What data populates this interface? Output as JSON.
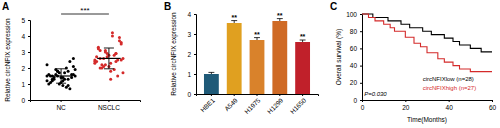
{
  "chart_data": [
    {
      "panel": "A",
      "type": "scatter",
      "categories": [
        "NC",
        "NSCLC"
      ],
      "values": [
        [
          1.5,
          1.2,
          1.8,
          1.4,
          0.9,
          2.1,
          1.6,
          1.3,
          1.0,
          1.7,
          2.4,
          1.5,
          1.1,
          1.9,
          1.4,
          0.8,
          1.6,
          2.2,
          1.3,
          1.5,
          1.2,
          1.8,
          2.6,
          1.0,
          1.4,
          1.7,
          1.3,
          0.7,
          1.9,
          1.5,
          1.6,
          1.1,
          2.0,
          1.4,
          1.2,
          1.5,
          1.8,
          0.9,
          1.3,
          1.6
        ],
        [
          2.5,
          3.1,
          2.2,
          1.8,
          2.9,
          3.6,
          2.4,
          2.0,
          2.7,
          4.2,
          1.5,
          2.6,
          3.3,
          2.1,
          2.8,
          1.9,
          3.9,
          2.3,
          2.6,
          3.0,
          1.3,
          2.4,
          3.5,
          2.7,
          2.2,
          2.9,
          4.0,
          2.5,
          1.7,
          3.2,
          2.6,
          2.1,
          2.8,
          3.7,
          2.4,
          2.0,
          3.1,
          2.3,
          2.9,
          2.5
        ]
      ],
      "means": [
        1.5,
        2.6
      ],
      "errors": [
        0.45,
        0.65
      ],
      "colors": [
        "#000000",
        "#d42a2a"
      ],
      "marker": "circle",
      "ylabel": "Relative circNFIX expression",
      "ylim": [
        0,
        5
      ],
      "yticks": [
        0,
        1,
        2,
        3,
        4,
        5
      ],
      "annotation": "***"
    },
    {
      "panel": "B",
      "type": "bar",
      "categories": [
        "HBE1",
        "A549",
        "H1975",
        "H1299",
        "H1650"
      ],
      "values": [
        1.0,
        3.55,
        2.7,
        3.65,
        2.6
      ],
      "errors": [
        0.08,
        0.12,
        0.12,
        0.12,
        0.1
      ],
      "colors": [
        "#1f5a78",
        "#e0a020",
        "#d9822b",
        "#cf6a25",
        "#c0202a"
      ],
      "ylabel": "Relative circNFIX expression",
      "ylim": [
        0,
        4
      ],
      "yticks": [
        0,
        1,
        2,
        3,
        4
      ],
      "annotations": [
        null,
        "**",
        "**",
        "**",
        "**"
      ]
    },
    {
      "panel": "C",
      "type": "line",
      "xlabel": "Time(Months)",
      "ylabel": "Overall survival (%)",
      "xlim": [
        0,
        60
      ],
      "xticks": [
        0,
        20,
        40,
        60
      ],
      "ylim": [
        0,
        100
      ],
      "yticks": [
        0,
        20,
        40,
        60,
        80,
        100
      ],
      "annotation": "P=0.030",
      "series": [
        {
          "name": "circNFIXlow (n=28)",
          "color": "#000000",
          "line_style": "step",
          "x": [
            0,
            5,
            12,
            18,
            22,
            28,
            32,
            38,
            42,
            45,
            50,
            55,
            60
          ],
          "values": [
            100,
            96,
            92,
            88,
            84,
            80,
            76,
            72,
            68,
            64,
            60,
            56,
            56
          ]
        },
        {
          "name": "circNFIXhigh (n=27)",
          "color": "#d42a2a",
          "line_style": "step",
          "x": [
            0,
            3,
            6,
            10,
            13,
            15,
            20,
            24,
            27,
            30,
            35,
            38,
            42,
            45,
            50,
            60
          ],
          "values": [
            100,
            96,
            92,
            88,
            84,
            80,
            73,
            66,
            62,
            55,
            48,
            44,
            40,
            36,
            33,
            33
          ]
        }
      ]
    }
  ]
}
